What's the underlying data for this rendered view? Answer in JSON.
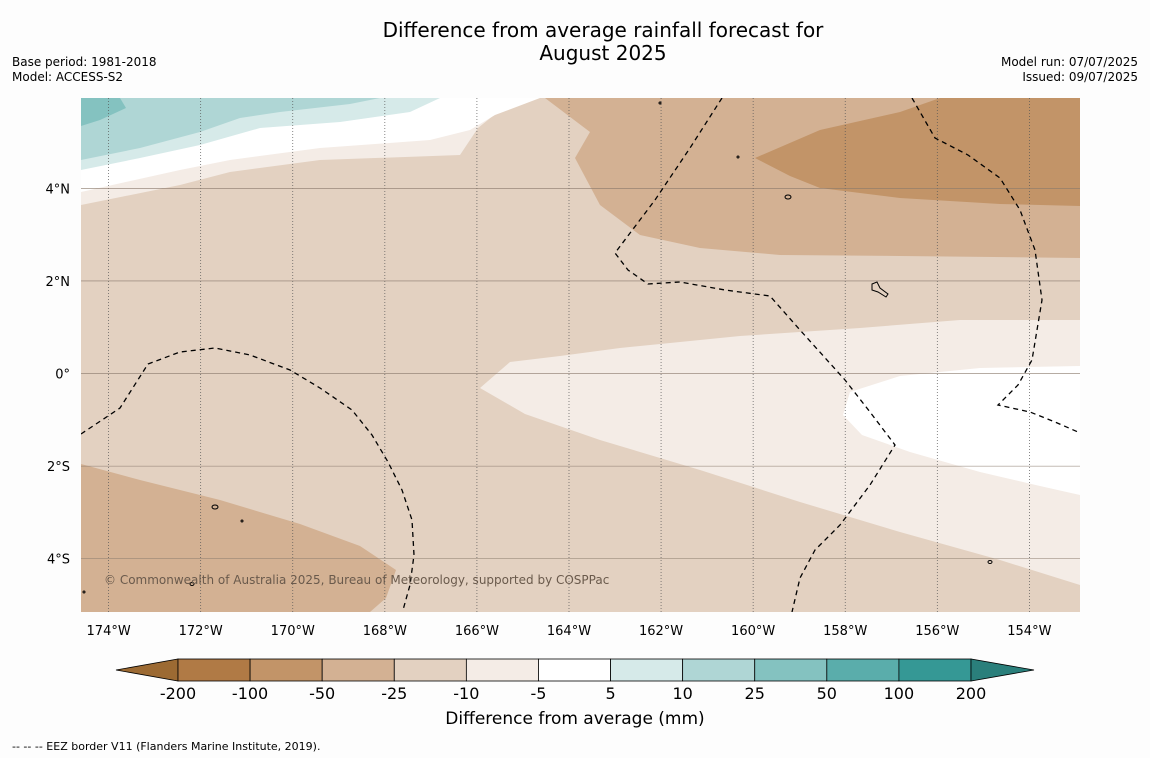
{
  "title": "Difference from average rainfall forecast for\nAugust 2025",
  "title_line1": "Difference from average rainfall forecast for",
  "title_line2": "August 2025",
  "meta": {
    "base_period": "Base period: 1981-2018",
    "model": "Model: ACCESS-S2",
    "model_run": "Model run: 07/07/2025",
    "issued": "Issued: 09/07/2025"
  },
  "map": {
    "lon_range": [
      -174.6,
      -152.9
    ],
    "lat_range": [
      -5.15,
      5.95
    ],
    "lon_ticks": [
      "174°W",
      "172°W",
      "170°W",
      "168°W",
      "166°W",
      "164°W",
      "162°W",
      "160°W",
      "158°W",
      "156°W",
      "154°W"
    ],
    "lat_ticks": [
      "4°N",
      "2°N",
      "0°",
      "2°S",
      "4°S"
    ],
    "copyright": "© Commonwealth of Australia 2025, Bureau of Meteorology, supported by COSPPac",
    "colors": {
      "n200": "#9c6a33",
      "n100": "#b07a45",
      "n50": "#c29468",
      "n25": "#d3b193",
      "n10": "#e3d1c1",
      "n5": "#f4ece6",
      "zero": "#ffffff",
      "p5": "#d6eae9",
      "p10": "#afd6d5",
      "p25": "#84c2c0",
      "p50": "#5aadab",
      "p100": "#359895",
      "p200": "#2a7f7b"
    }
  },
  "colorbar": {
    "labels": [
      "-200",
      "-100",
      "-50",
      "-25",
      "-10",
      "-5",
      "5",
      "10",
      "25",
      "50",
      "100",
      "200"
    ],
    "title": "Difference from average (mm)"
  },
  "footer": "--  --  -- EEZ border V11 (Flanders Marine Institute, 2019)."
}
